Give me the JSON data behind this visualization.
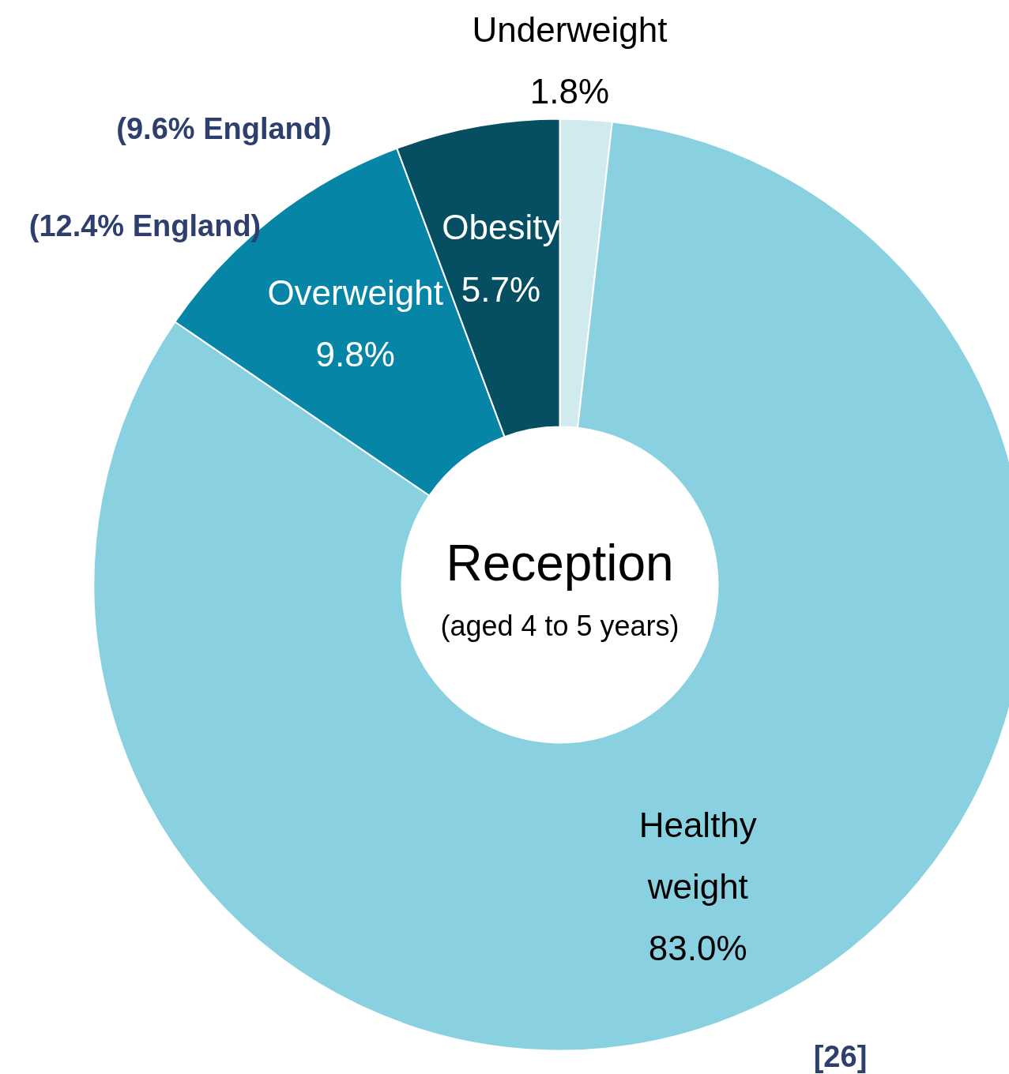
{
  "chart_data": {
    "type": "donut",
    "title": "Reception",
    "subtitle": "(aged 4 to 5 years)",
    "categories": [
      "Underweight",
      "Healthy weight",
      "Overweight",
      "Obesity"
    ],
    "values": [
      1.8,
      83.0,
      9.8,
      5.7
    ],
    "value_labels": [
      "1.8%",
      "83.0%",
      "9.8%",
      "5.7%"
    ],
    "colors": [
      "#d0eaf0",
      "#89d1e0",
      "#0785a6",
      "#064f63"
    ],
    "annotations": [
      "(9.6% England)",
      "(12.4% England)",
      "[26]"
    ]
  }
}
